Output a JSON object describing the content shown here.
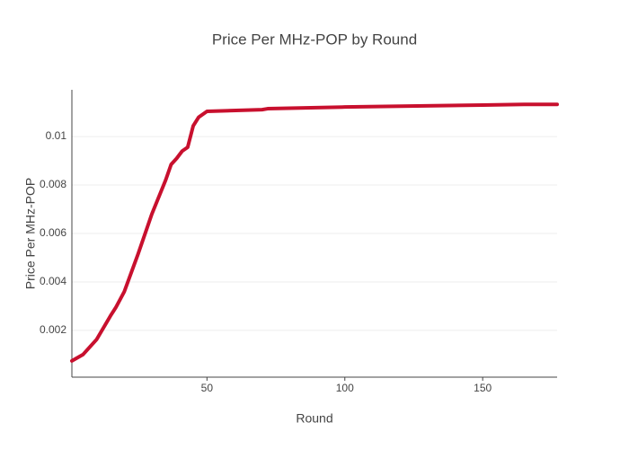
{
  "chart_data": {
    "type": "line",
    "title": "Price Per MHz-POP by Round",
    "x_label": "Round",
    "y_label": "Price Per MHz-POP",
    "x": [
      1,
      5,
      10,
      15,
      17,
      20,
      25,
      30,
      35,
      37,
      39,
      41,
      43,
      45,
      47,
      50,
      70,
      72,
      100,
      150,
      165,
      177
    ],
    "series": [
      {
        "name": "Price Per MHz-POP",
        "color": "#c8102e",
        "values": [
          0.00074,
          0.001,
          0.00163,
          0.0026,
          0.00296,
          0.0036,
          0.00515,
          0.0068,
          0.0082,
          0.00885,
          0.0091,
          0.0094,
          0.00956,
          0.01044,
          0.0108,
          0.01104,
          0.01111,
          0.01115,
          0.01122,
          0.0113,
          0.01133,
          0.01133
        ]
      }
    ],
    "xlim": [
      1,
      177
    ],
    "xticks": [
      50,
      100,
      150
    ],
    "ylim": [
      7e-05,
      0.01193
    ],
    "yticks": [
      0.002,
      0.004,
      0.006,
      0.008,
      0.01
    ],
    "grid": true
  }
}
